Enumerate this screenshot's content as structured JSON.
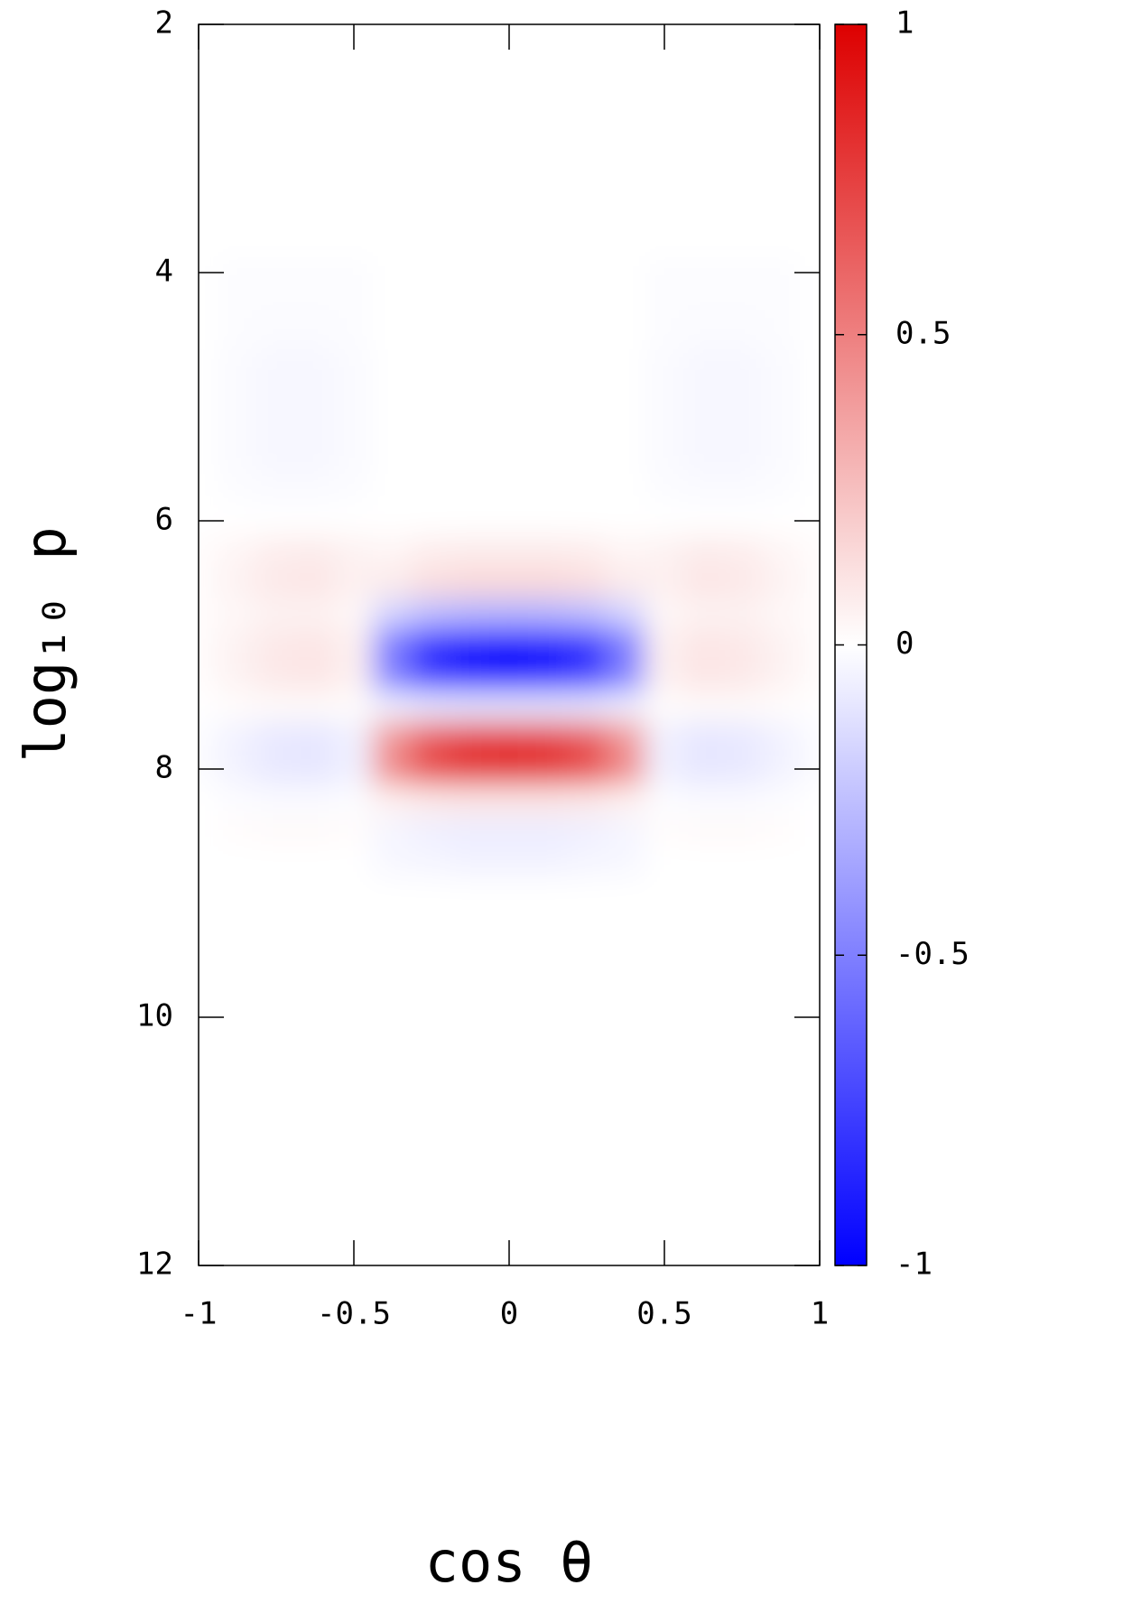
{
  "chart_data": {
    "type": "heatmap",
    "xlabel": "cos θ",
    "ylabel": "log₁₀ p",
    "x": [
      -1,
      -0.875,
      -0.75,
      -0.625,
      -0.5,
      -0.375,
      -0.25,
      -0.125,
      0,
      0.125,
      0.25,
      0.375,
      0.5,
      0.625,
      0.75,
      0.875,
      1
    ],
    "y": [
      2,
      2.25,
      2.5,
      2.75,
      3,
      3.25,
      3.5,
      3.75,
      4,
      4.25,
      4.5,
      4.75,
      5,
      5.25,
      5.5,
      5.75,
      6,
      6.25,
      6.5,
      6.75,
      7,
      7.25,
      7.5,
      7.75,
      8,
      8.25,
      8.5,
      8.75,
      9,
      9.25,
      9.5,
      9.75,
      10,
      10.25,
      10.5,
      10.75,
      11,
      11.25,
      11.5,
      11.75,
      12
    ],
    "z": [
      [
        0,
        0,
        0,
        0,
        0,
        0,
        0,
        0,
        0,
        0,
        0,
        0,
        0,
        0,
        0,
        0,
        0
      ],
      [
        0,
        0,
        0,
        0,
        0,
        0,
        0,
        0,
        0,
        0,
        0,
        0,
        0,
        0,
        0,
        0,
        0
      ],
      [
        0,
        0,
        0,
        0,
        0,
        0,
        0,
        0,
        0,
        0,
        0,
        0,
        0,
        0,
        0,
        0,
        0
      ],
      [
        0,
        0,
        0,
        0,
        0,
        0,
        0,
        0,
        0,
        0,
        0,
        0,
        0,
        0,
        0,
        0,
        0
      ],
      [
        0,
        0,
        0,
        0,
        0,
        0,
        0,
        0,
        0,
        0,
        0,
        0,
        0,
        0,
        0,
        0,
        0
      ],
      [
        0,
        0,
        0,
        0,
        0,
        0,
        0,
        0,
        0,
        0,
        0,
        0,
        0,
        0,
        0,
        0,
        0
      ],
      [
        0,
        0,
        0,
        0,
        0,
        0,
        0,
        0,
        0,
        0,
        0,
        0,
        0,
        0,
        0,
        0,
        0
      ],
      [
        0,
        0,
        0,
        0,
        0,
        0,
        0,
        0,
        0,
        0,
        0,
        0,
        0,
        0,
        0,
        0,
        0
      ],
      [
        0,
        -0.01,
        -0.01,
        -0.01,
        -0.01,
        0,
        0,
        0,
        0,
        0,
        0,
        0,
        -0.01,
        -0.01,
        -0.01,
        -0.01,
        0
      ],
      [
        0,
        -0.01,
        -0.01,
        -0.01,
        -0.01,
        0,
        0,
        0,
        0,
        0,
        0,
        0,
        -0.01,
        -0.01,
        -0.01,
        -0.01,
        0
      ],
      [
        0,
        -0.01,
        -0.02,
        -0.02,
        -0.01,
        0,
        0,
        0,
        0,
        0,
        0,
        0,
        -0.01,
        -0.02,
        -0.02,
        -0.01,
        0
      ],
      [
        0,
        -0.02,
        -0.03,
        -0.03,
        -0.02,
        0,
        0,
        0,
        0,
        0,
        0,
        0,
        -0.02,
        -0.03,
        -0.03,
        -0.02,
        0
      ],
      [
        0,
        -0.02,
        -0.03,
        -0.03,
        -0.02,
        0,
        0,
        0,
        0,
        0,
        0,
        0,
        -0.02,
        -0.03,
        -0.03,
        -0.02,
        0
      ],
      [
        0,
        -0.02,
        -0.03,
        -0.03,
        -0.02,
        0,
        0,
        0,
        0,
        0,
        0,
        0,
        -0.02,
        -0.03,
        -0.03,
        -0.02,
        0
      ],
      [
        0,
        -0.02,
        -0.03,
        -0.03,
        -0.02,
        0,
        0,
        0,
        0,
        0,
        0,
        0,
        -0.02,
        -0.03,
        -0.03,
        -0.02,
        0
      ],
      [
        0,
        -0.01,
        -0.02,
        -0.02,
        -0.01,
        0,
        0,
        0,
        0,
        0,
        0,
        0,
        -0.01,
        -0.02,
        -0.02,
        -0.01,
        0
      ],
      [
        0,
        0,
        0,
        0,
        0,
        0,
        0,
        0,
        0,
        0,
        0,
        0,
        0,
        0,
        0,
        0,
        0
      ],
      [
        0.01,
        0.04,
        0.07,
        0.08,
        0.05,
        0.04,
        0.07,
        0.08,
        0.08,
        0.08,
        0.07,
        0.04,
        0.05,
        0.08,
        0.07,
        0.04,
        0.01
      ],
      [
        0.01,
        0.05,
        0.09,
        0.1,
        0.06,
        0.08,
        0.13,
        0.15,
        0.15,
        0.15,
        0.13,
        0.08,
        0.06,
        0.1,
        0.09,
        0.05,
        0.01
      ],
      [
        0.01,
        0.03,
        0.05,
        0.05,
        0.03,
        -0.17,
        -0.26,
        -0.29,
        -0.3,
        -0.29,
        -0.26,
        -0.17,
        0.03,
        0.05,
        0.05,
        0.03,
        0.01
      ],
      [
        0.01,
        0.05,
        0.09,
        0.1,
        0.06,
        -0.52,
        -0.81,
        -0.92,
        -0.95,
        -0.92,
        -0.81,
        -0.52,
        0.06,
        0.1,
        0.09,
        0.05,
        0.01
      ],
      [
        0.01,
        0.05,
        0.09,
        0.1,
        0.06,
        -0.5,
        -0.77,
        -0.87,
        -0.9,
        -0.87,
        -0.77,
        -0.5,
        0.06,
        0.1,
        0.09,
        0.05,
        0.01
      ],
      [
        0,
        0.01,
        0.02,
        0.02,
        0.01,
        -0.06,
        -0.09,
        -0.1,
        -0.1,
        -0.1,
        -0.09,
        -0.06,
        0.01,
        0.02,
        0.02,
        0.01,
        0
      ],
      [
        -0.01,
        -0.05,
        -0.09,
        -0.1,
        -0.06,
        0.41,
        0.64,
        0.73,
        0.75,
        0.73,
        0.64,
        0.41,
        -0.06,
        -0.1,
        -0.09,
        -0.05,
        -0.01
      ],
      [
        -0.01,
        -0.05,
        -0.09,
        -0.1,
        -0.06,
        0.47,
        0.72,
        0.82,
        0.85,
        0.82,
        0.72,
        0.47,
        -0.06,
        -0.1,
        -0.09,
        -0.05,
        -0.01
      ],
      [
        0,
        -0.01,
        -0.02,
        -0.02,
        -0.01,
        0.06,
        0.09,
        0.1,
        0.1,
        0.1,
        0.09,
        0.06,
        -0.01,
        -0.02,
        -0.02,
        -0.01,
        0
      ],
      [
        0,
        0.01,
        0.02,
        0.02,
        0.01,
        -0.04,
        -0.06,
        -0.07,
        -0.07,
        -0.07,
        -0.06,
        -0.04,
        0.01,
        0.02,
        0.02,
        0.01,
        0
      ],
      [
        0,
        0,
        0,
        0,
        0,
        -0.03,
        -0.04,
        -0.05,
        -0.05,
        -0.05,
        -0.04,
        -0.03,
        0,
        0,
        0,
        0,
        0
      ],
      [
        0,
        0,
        0,
        0,
        0,
        0,
        0,
        0,
        0,
        0,
        0,
        0,
        0,
        0,
        0,
        0,
        0
      ],
      [
        0,
        0,
        0,
        0,
        0,
        0,
        0,
        0,
        0,
        0,
        0,
        0,
        0,
        0,
        0,
        0,
        0
      ],
      [
        0,
        0,
        0,
        0,
        0,
        0,
        0,
        0,
        0,
        0,
        0,
        0,
        0,
        0,
        0,
        0,
        0
      ],
      [
        0,
        0,
        0,
        0,
        0,
        0,
        0,
        0,
        0,
        0,
        0,
        0,
        0,
        0,
        0,
        0,
        0
      ],
      [
        0,
        0,
        0,
        0,
        0,
        0,
        0,
        0,
        0,
        0,
        0,
        0,
        0,
        0,
        0,
        0,
        0
      ],
      [
        0,
        0,
        0,
        0,
        0,
        0,
        0,
        0,
        0,
        0,
        0,
        0,
        0,
        0,
        0,
        0,
        0
      ],
      [
        0,
        0,
        0,
        0,
        0,
        0,
        0,
        0,
        0,
        0,
        0,
        0,
        0,
        0,
        0,
        0,
        0
      ],
      [
        0,
        0,
        0,
        0,
        0,
        0,
        0,
        0,
        0,
        0,
        0,
        0,
        0,
        0,
        0,
        0,
        0
      ],
      [
        0,
        0,
        0,
        0,
        0,
        0,
        0,
        0,
        0,
        0,
        0,
        0,
        0,
        0,
        0,
        0,
        0
      ],
      [
        0,
        0,
        0,
        0,
        0,
        0,
        0,
        0,
        0,
        0,
        0,
        0,
        0,
        0,
        0,
        0,
        0
      ],
      [
        0,
        0,
        0,
        0,
        0,
        0,
        0,
        0,
        0,
        0,
        0,
        0,
        0,
        0,
        0,
        0,
        0
      ],
      [
        0,
        0,
        0,
        0,
        0,
        0,
        0,
        0,
        0,
        0,
        0,
        0,
        0,
        0,
        0,
        0,
        0
      ],
      [
        0,
        0,
        0,
        0,
        0,
        0,
        0,
        0,
        0,
        0,
        0,
        0,
        0,
        0,
        0,
        0,
        0
      ]
    ],
    "xlim": [
      -1,
      1
    ],
    "xticks": [
      -1,
      -0.5,
      0,
      0.5,
      1
    ],
    "ylim": [
      2,
      12
    ],
    "yticks": [
      2,
      4,
      6,
      8,
      10,
      12
    ],
    "y_inverted": true,
    "zlim": [
      -1,
      1
    ],
    "zticks": [
      -1,
      -0.5,
      0,
      0.5,
      1
    ],
    "colormap": [
      "#0000ff",
      "#ffffff",
      "#dd0000"
    ]
  }
}
